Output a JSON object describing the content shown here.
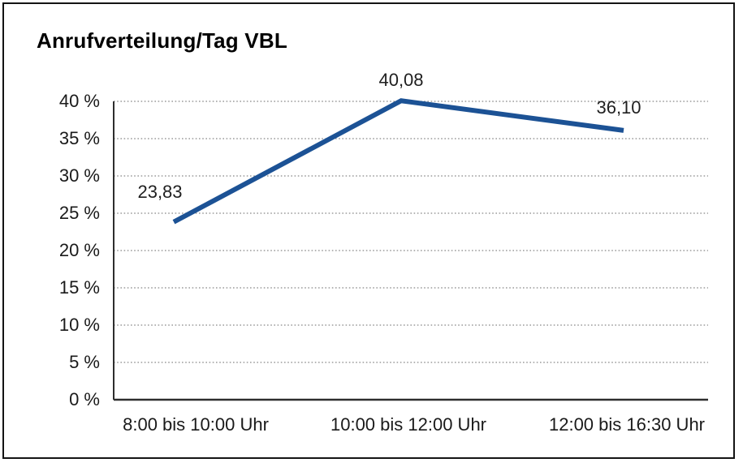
{
  "page": {
    "background": "#ffffff",
    "frame_border_color": "#141414"
  },
  "chart_data": {
    "type": "line",
    "title": "Anrufverteilung/Tag VBL",
    "categories": [
      "8:00 bis 10:00 Uhr",
      "10:00 bis 12:00 Uhr",
      "12:00 bis 16:30 Uhr"
    ],
    "values": [
      23.83,
      40.08,
      36.1
    ],
    "data_labels": [
      "23,83",
      "40,08",
      "36,10"
    ],
    "xlabel": "",
    "ylabel": "",
    "ylim": [
      0,
      40
    ],
    "ytick_step": 5,
    "yticks": [
      "0 %",
      "5 %",
      "10 %",
      "15 %",
      "20 %",
      "25 %",
      "30 %",
      "35 %",
      "40 %"
    ],
    "grid": "horizontal-dotted",
    "gridline_color": "#888888",
    "axis_color": "#2e2e2e",
    "line_color": "#1C5295",
    "legend": "none"
  }
}
